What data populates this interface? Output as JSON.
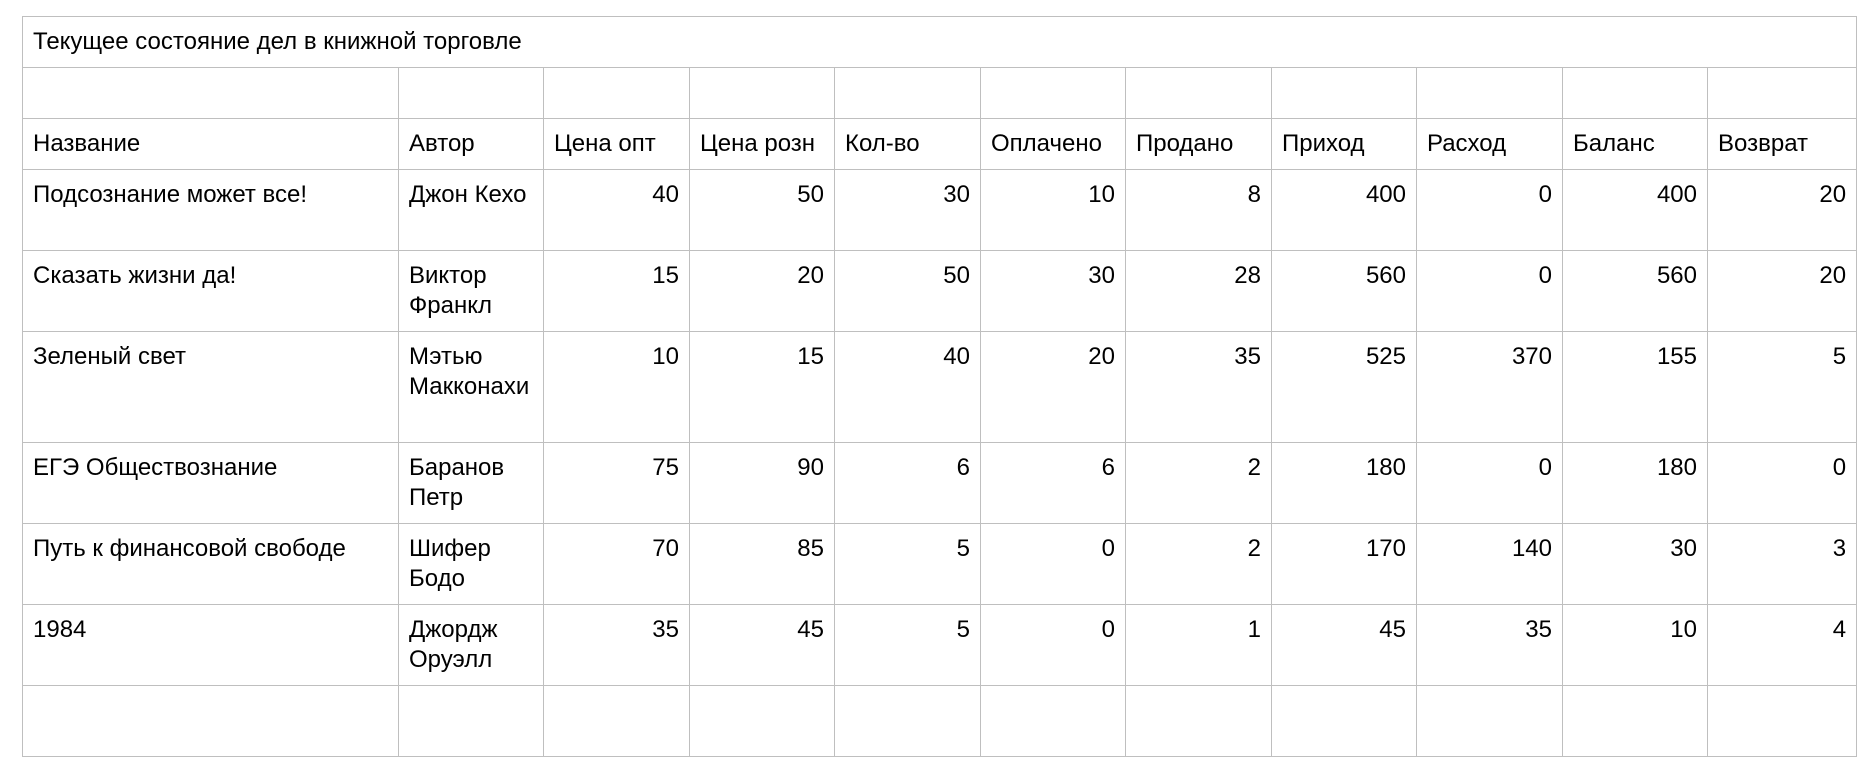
{
  "sheet": {
    "title": "Текущее состояние дел в книжной торговле",
    "headers": [
      "Название",
      "Автор",
      "Цена опт",
      "Цена розн",
      "Кол-во",
      "Оплачено",
      "Продано",
      "Приход",
      "Расход",
      "Баланс",
      "Возврат"
    ],
    "rows": [
      {
        "name": "Подсознание может все!",
        "author": "Джон Кехо",
        "wholesale": "40",
        "retail": "50",
        "qty": "30",
        "paid": "10",
        "sold": "8",
        "income": "400",
        "expense": "0",
        "balance": "400",
        "returned": "20"
      },
      {
        "name": "Сказать жизни да!",
        "author": "Виктор Франкл",
        "wholesale": "15",
        "retail": "20",
        "qty": "50",
        "paid": "30",
        "sold": "28",
        "income": "560",
        "expense": "0",
        "balance": "560",
        "returned": "20"
      },
      {
        "name": "Зеленый свет",
        "author": "Мэтью Макконахи",
        "wholesale": "10",
        "retail": "15",
        "qty": "40",
        "paid": "20",
        "sold": "35",
        "income": "525",
        "expense": "370",
        "balance": "155",
        "returned": "5"
      },
      {
        "name": "ЕГЭ Обществознание",
        "author": "Баранов Петр",
        "wholesale": "75",
        "retail": "90",
        "qty": "6",
        "paid": "6",
        "sold": "2",
        "income": "180",
        "expense": "0",
        "balance": "180",
        "returned": "0"
      },
      {
        "name": "Путь к финансовой свободе",
        "author": "Шифер Бодо",
        "wholesale": "70",
        "retail": "85",
        "qty": "5",
        "paid": "0",
        "sold": "2",
        "income": "170",
        "expense": "140",
        "balance": "30",
        "returned": "3"
      },
      {
        "name": "1984",
        "author": "Джордж Оруэлл",
        "wholesale": "35",
        "retail": "45",
        "qty": "5",
        "paid": "0",
        "sold": "1",
        "income": "45",
        "expense": "35",
        "balance": "10",
        "returned": "4"
      }
    ]
  }
}
